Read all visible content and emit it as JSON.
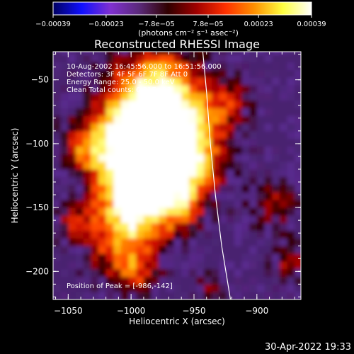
{
  "chart_data": {
    "type": "heatmap",
    "title": "Reconstructed RHESSI Image",
    "xlabel": "Heliocentric X (arcsec)",
    "ylabel": "Heliocentric Y (arcsec)",
    "xlim": [
      -1062,
      -865
    ],
    "ylim": [
      -222,
      -28
    ],
    "xticks": [
      -1050,
      -1000,
      -950,
      -900
    ],
    "xtick_labels": [
      "−1050",
      "−1000",
      "−950",
      "−900"
    ],
    "yticks": [
      -50,
      -100,
      -150,
      -200
    ],
    "ytick_labels": [
      "−50",
      "−100",
      "−150",
      "−200"
    ],
    "colorbar": {
      "range": [
        -0.00039,
        0.00039
      ],
      "ticks": [
        -0.00039,
        -0.00023,
        -7.8e-05,
        7.8e-05,
        0.00023,
        0.00039
      ],
      "tick_labels": [
        "−0.00039",
        "−0.00023",
        "−7.8e−05",
        "7.8e−05",
        "0.00023",
        "0.00039"
      ],
      "units_label": "(photons cm⁻² s⁻¹ asec⁻²)",
      "colormap": [
        "#000060",
        "#1010ff",
        "#8030d0",
        "#5a2a7a",
        "#300000",
        "#a00000",
        "#ff3000",
        "#ff9000",
        "#ffff40",
        "#ffffff"
      ]
    },
    "annotations": [
      "10-Aug-2002 16:45:56.000 to 16:51:56.000",
      "Detectors: 3F 4F 5F 6F 7F 8F  Att 0",
      "Energy Range: 25.0 - 50.0 keV",
      "Clean     Total counts: 6.31E+03"
    ],
    "peak_label": "Position of Peak = [-986,-142]",
    "peak": [
      -986,
      -142
    ],
    "limb_curve": [
      [
        -943,
        -28
      ],
      [
        -940,
        -60
      ],
      [
        -937,
        -100
      ],
      [
        -933,
        -140
      ],
      [
        -928,
        -180
      ],
      [
        -921,
        -222
      ]
    ],
    "grid": false
  },
  "footer": {
    "timestamp": "30-Apr-2022 19:33"
  }
}
